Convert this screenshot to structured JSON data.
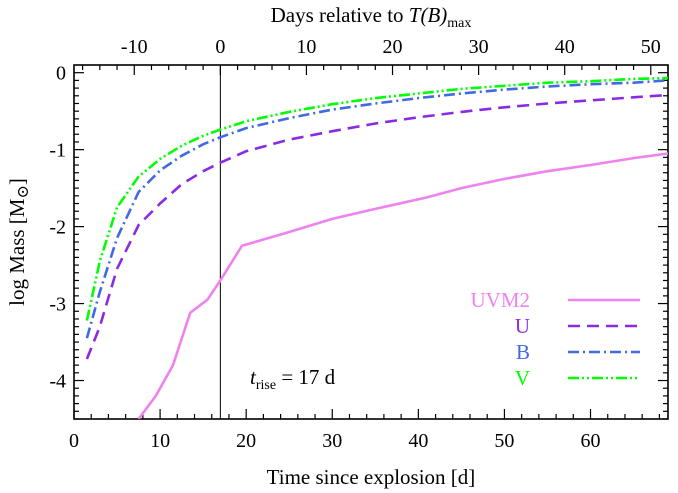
{
  "chart_data": {
    "type": "line",
    "x_axis_label": "Time since explosion [d]",
    "top_axis_label_prefix": "Days relative to ",
    "top_axis_label_var": "T(B)",
    "top_axis_label_sub": "max",
    "y_axis_label": "log Mass [M",
    "y_axis_label_sym": "⊙",
    "y_axis_label_end": "]",
    "xlim": [
      0,
      69
    ],
    "ylim": [
      -4.5,
      0.1
    ],
    "x_ticks": [
      0,
      10,
      20,
      30,
      40,
      50,
      60
    ],
    "x_tick_labels": [
      "0",
      "10",
      "20",
      "30",
      "40",
      "50",
      "60"
    ],
    "top_ticks": [
      -10,
      0,
      10,
      20,
      30,
      40,
      50
    ],
    "top_tick_labels": [
      "-10",
      "0",
      "10",
      "20",
      "30",
      "40",
      "50"
    ],
    "top_offset": 17,
    "y_ticks": [
      0,
      -1,
      -2,
      -3,
      -4
    ],
    "y_tick_labels": [
      "0",
      "-1",
      "-2",
      "-3",
      "-4"
    ],
    "vline_x": 17,
    "annotation": {
      "var": "t",
      "sub": "rise",
      "rest": " = 17 d"
    },
    "series": [
      {
        "name": "UVM2",
        "color": "#EE82EE",
        "dash": "solid",
        "x": [
          7.5,
          9.5,
          11.5,
          13.5,
          15.5,
          17,
          19.5,
          25,
          30,
          35,
          41,
          45,
          50,
          55,
          60,
          65,
          69
        ],
        "y": [
          -4.5,
          -4.2,
          -3.8,
          -3.12,
          -2.95,
          -2.7,
          -2.25,
          -2.07,
          -1.9,
          -1.77,
          -1.62,
          -1.5,
          -1.38,
          -1.28,
          -1.2,
          -1.11,
          -1.05
        ]
      },
      {
        "name": "U",
        "color": "#8A2BE2",
        "dash": "dashed",
        "x": [
          1.5,
          3,
          5,
          7.5,
          10,
          12.5,
          15,
          17,
          20,
          25,
          30,
          35,
          40,
          45,
          50,
          55,
          60,
          65,
          69
        ],
        "y": [
          -3.72,
          -3.3,
          -2.55,
          -1.98,
          -1.7,
          -1.45,
          -1.28,
          -1.17,
          -1.02,
          -0.87,
          -0.76,
          -0.66,
          -0.58,
          -0.51,
          -0.45,
          -0.4,
          -0.36,
          -0.32,
          -0.29
        ]
      },
      {
        "name": "B",
        "color": "#4169E1",
        "dash": "dashdot",
        "x": [
          1.5,
          3,
          5,
          7.5,
          10,
          12.5,
          15,
          17,
          20,
          25,
          30,
          35,
          40,
          45,
          50,
          55,
          60,
          65,
          69
        ],
        "y": [
          -3.45,
          -2.85,
          -2.15,
          -1.55,
          -1.27,
          -1.08,
          -0.93,
          -0.84,
          -0.72,
          -0.59,
          -0.48,
          -0.4,
          -0.33,
          -0.27,
          -0.22,
          -0.18,
          -0.15,
          -0.13,
          -0.1
        ]
      },
      {
        "name": "V",
        "color": "#00FF00",
        "dash": "dashdotdot",
        "x": [
          1.5,
          3,
          5,
          7.5,
          10,
          12.5,
          15,
          17,
          20,
          25,
          30,
          35,
          40,
          45,
          50,
          55,
          60,
          65,
          69
        ],
        "y": [
          -3.22,
          -2.45,
          -1.75,
          -1.35,
          -1.12,
          -0.95,
          -0.82,
          -0.74,
          -0.63,
          -0.51,
          -0.41,
          -0.33,
          -0.27,
          -0.21,
          -0.17,
          -0.13,
          -0.11,
          -0.08,
          -0.07
        ]
      }
    ]
  }
}
